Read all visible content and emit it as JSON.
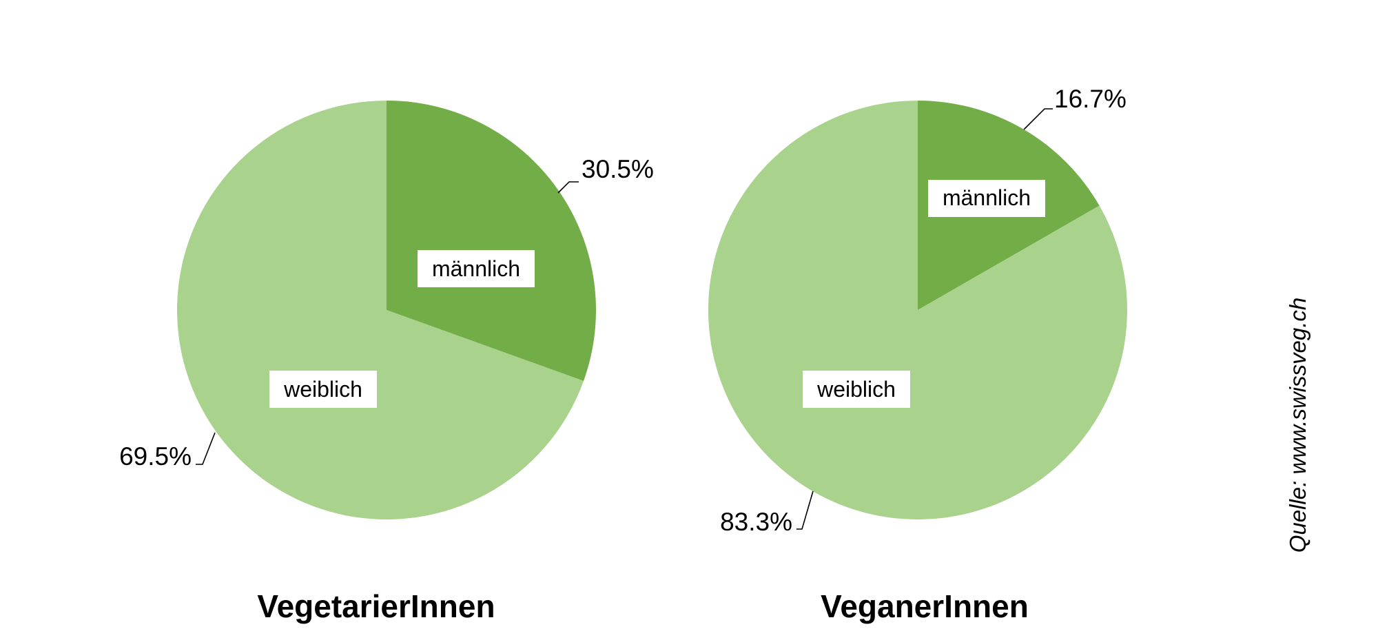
{
  "source": "Quelle: www.swissveg.ch",
  "colors": {
    "maennlich": "#72ad47",
    "weiblich": "#a9d28d"
  },
  "chart_data": [
    {
      "type": "pie",
      "title": "VegetarierInnen",
      "slices": [
        {
          "label": "männlich",
          "value": 30.5,
          "value_label": "30.5%"
        },
        {
          "label": "weiblich",
          "value": 69.5,
          "value_label": "69.5%"
        }
      ]
    },
    {
      "type": "pie",
      "title": "VeganerInnen",
      "slices": [
        {
          "label": "männlich",
          "value": 16.7,
          "value_label": "16.7%"
        },
        {
          "label": "weiblich",
          "value": 83.3,
          "value_label": "83.3%"
        }
      ]
    }
  ]
}
